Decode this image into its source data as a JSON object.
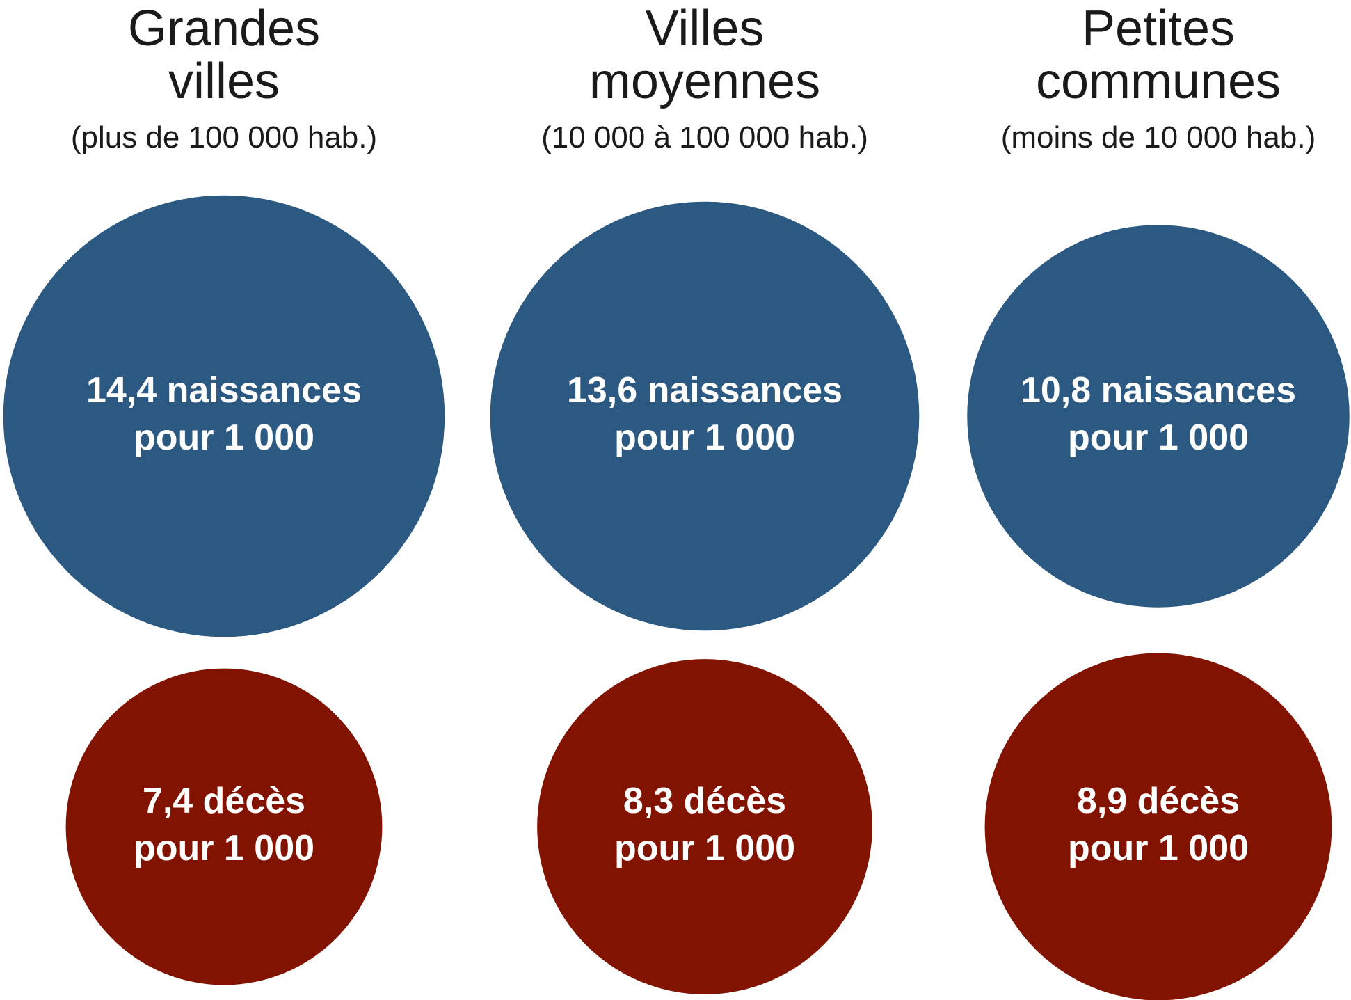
{
  "chart_data": {
    "type": "bubble",
    "colors": {
      "births": "#2b5981",
      "deaths": "#811300",
      "label": "#ffffff",
      "heading": "#1a1a1a"
    },
    "columns": [
      {
        "title_lines": [
          "Grandes",
          "villes"
        ],
        "subtitle": "(plus de 100 000 hab.)",
        "births": {
          "value": 14.4,
          "label_lines": [
            "14,4 naissances",
            "pour 1 000"
          ]
        },
        "deaths": {
          "value": 7.4,
          "label_lines": [
            "7,4 décès",
            "pour 1 000"
          ]
        }
      },
      {
        "title_lines": [
          "Villes",
          "moyennes"
        ],
        "subtitle": "(10 000 à 100 000 hab.)",
        "births": {
          "value": 13.6,
          "label_lines": [
            "13,6 naissances",
            "pour 1 000"
          ]
        },
        "deaths": {
          "value": 8.3,
          "label_lines": [
            "8,3 décès",
            "pour 1 000"
          ]
        }
      },
      {
        "title_lines": [
          "Petites",
          "communes"
        ],
        "subtitle": "(moins de 10 000 hab.)",
        "births": {
          "value": 10.8,
          "label_lines": [
            "10,8 naissances",
            "pour 1 000"
          ]
        },
        "deaths": {
          "value": 8.9,
          "label_lines": [
            "8,9 décès",
            "pour 1 000"
          ]
        }
      }
    ]
  }
}
